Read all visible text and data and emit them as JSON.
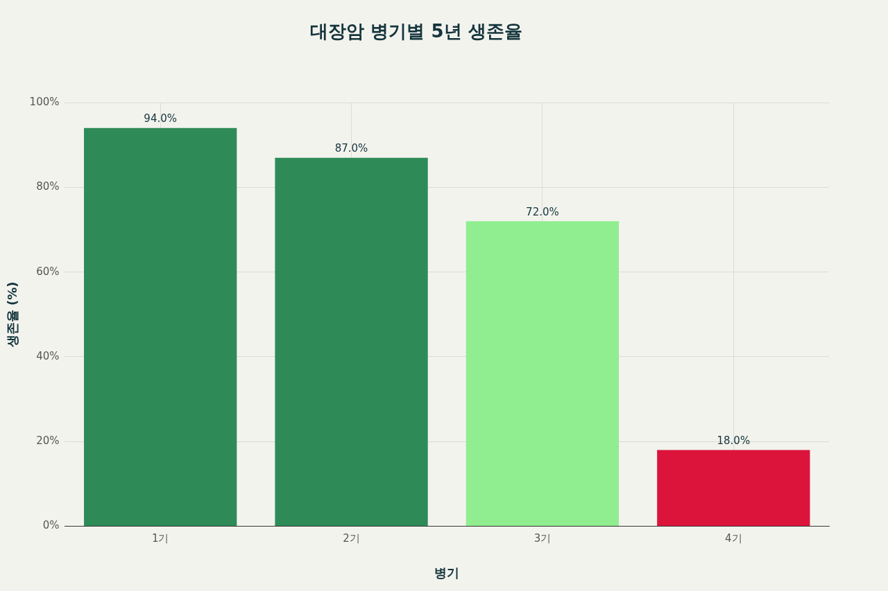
{
  "chart_data": {
    "type": "bar",
    "title": "대장암 병기별 5년 생존율",
    "xlabel": "병기",
    "ylabel": "생존율 (%)",
    "categories": [
      "1기",
      "2기",
      "3기",
      "4기"
    ],
    "values": [
      94,
      87,
      72,
      18
    ],
    "colors": [
      "#2e8b57",
      "#2e8b57",
      "#90ee90",
      "#dc143c"
    ],
    "value_labels": [
      "94.0%",
      "87.0%",
      "72.0%",
      "18.0%"
    ],
    "ylim": [
      0,
      100
    ],
    "yticks": [
      {
        "value": 0,
        "label": "0%"
      },
      {
        "value": 20,
        "label": "20%"
      },
      {
        "value": 40,
        "label": "40%"
      },
      {
        "value": 60,
        "label": "60%"
      },
      {
        "value": 80,
        "label": "80%"
      },
      {
        "value": 100,
        "label": "100%"
      }
    ],
    "grid": true,
    "legend": false
  }
}
